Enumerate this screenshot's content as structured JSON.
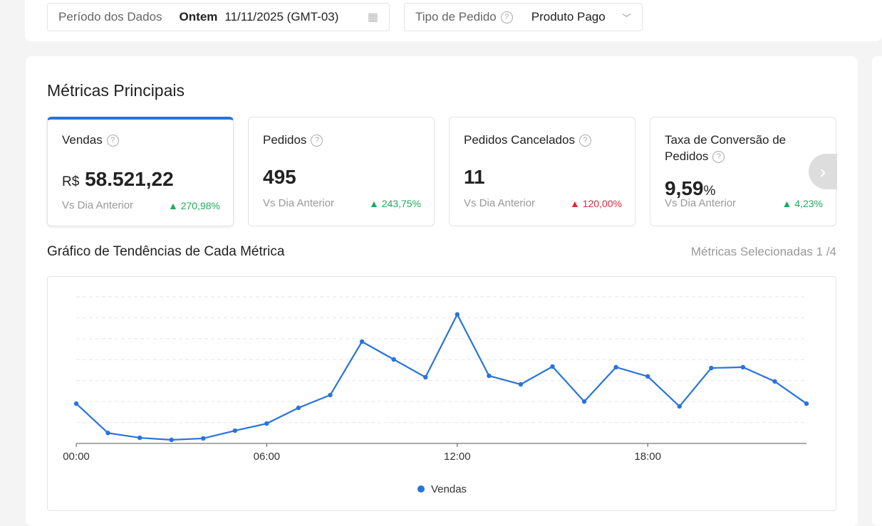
{
  "filters": {
    "period_label": "Período dos Dados",
    "period_preset": "Ontem",
    "period_value": "11/11/2025 (GMT-03)",
    "order_type_label": "Tipo de Pedido",
    "order_type_value": "Produto Pago"
  },
  "section_title": "Métricas Principais",
  "metrics": [
    {
      "name": "Vendas",
      "prefix": "R$",
      "value": "58.521,22",
      "suffix": "",
      "compare": "Vs Dia Anterior",
      "change": "270,98%",
      "direction": "up"
    },
    {
      "name": "Pedidos",
      "prefix": "",
      "value": "495",
      "suffix": "",
      "compare": "Vs Dia Anterior",
      "change": "243,75%",
      "direction": "up"
    },
    {
      "name": "Pedidos Cancelados",
      "prefix": "",
      "value": "11",
      "suffix": "",
      "compare": "Vs Dia Anterior",
      "change": "120,00%",
      "direction": "up-bad"
    },
    {
      "name": "Taxa de Conversão de Pedidos",
      "prefix": "",
      "value": "9,59",
      "suffix": "%",
      "compare": "Vs Dia Anterior",
      "change": "4,23%",
      "direction": "up"
    }
  ],
  "trend_title": "Gráfico de Tendências de Cada Métrica",
  "selected_metrics": "Métricas Selecionadas 1 /4",
  "colors": {
    "accent": "#2873dc",
    "up": "#1fa85d",
    "down": "#e0283b"
  },
  "chart_data": {
    "type": "line",
    "x": [
      0,
      1,
      2,
      3,
      4,
      5,
      6,
      7,
      8,
      9,
      10,
      11,
      12,
      13,
      14,
      15,
      16,
      17,
      18,
      19,
      20,
      21,
      22,
      23
    ],
    "x_tick_labels": [
      "00:00",
      "06:00",
      "12:00",
      "18:00"
    ],
    "x_ticks": [
      0,
      6,
      12,
      18
    ],
    "series": [
      {
        "name": "Vendas",
        "color": "#2873dc",
        "values": [
          1.9,
          0.5,
          0.27,
          0.17,
          0.24,
          0.61,
          0.95,
          1.7,
          2.31,
          4.86,
          4.01,
          3.16,
          6.16,
          3.23,
          2.82,
          3.67,
          2.0,
          3.64,
          3.2,
          1.77,
          3.6,
          3.64,
          2.96,
          1.9
        ]
      }
    ],
    "ylim": [
      0,
      7
    ],
    "grid": true,
    "legend": "bottom-center",
    "y_units": "relative (no y-axis labels shown)"
  }
}
